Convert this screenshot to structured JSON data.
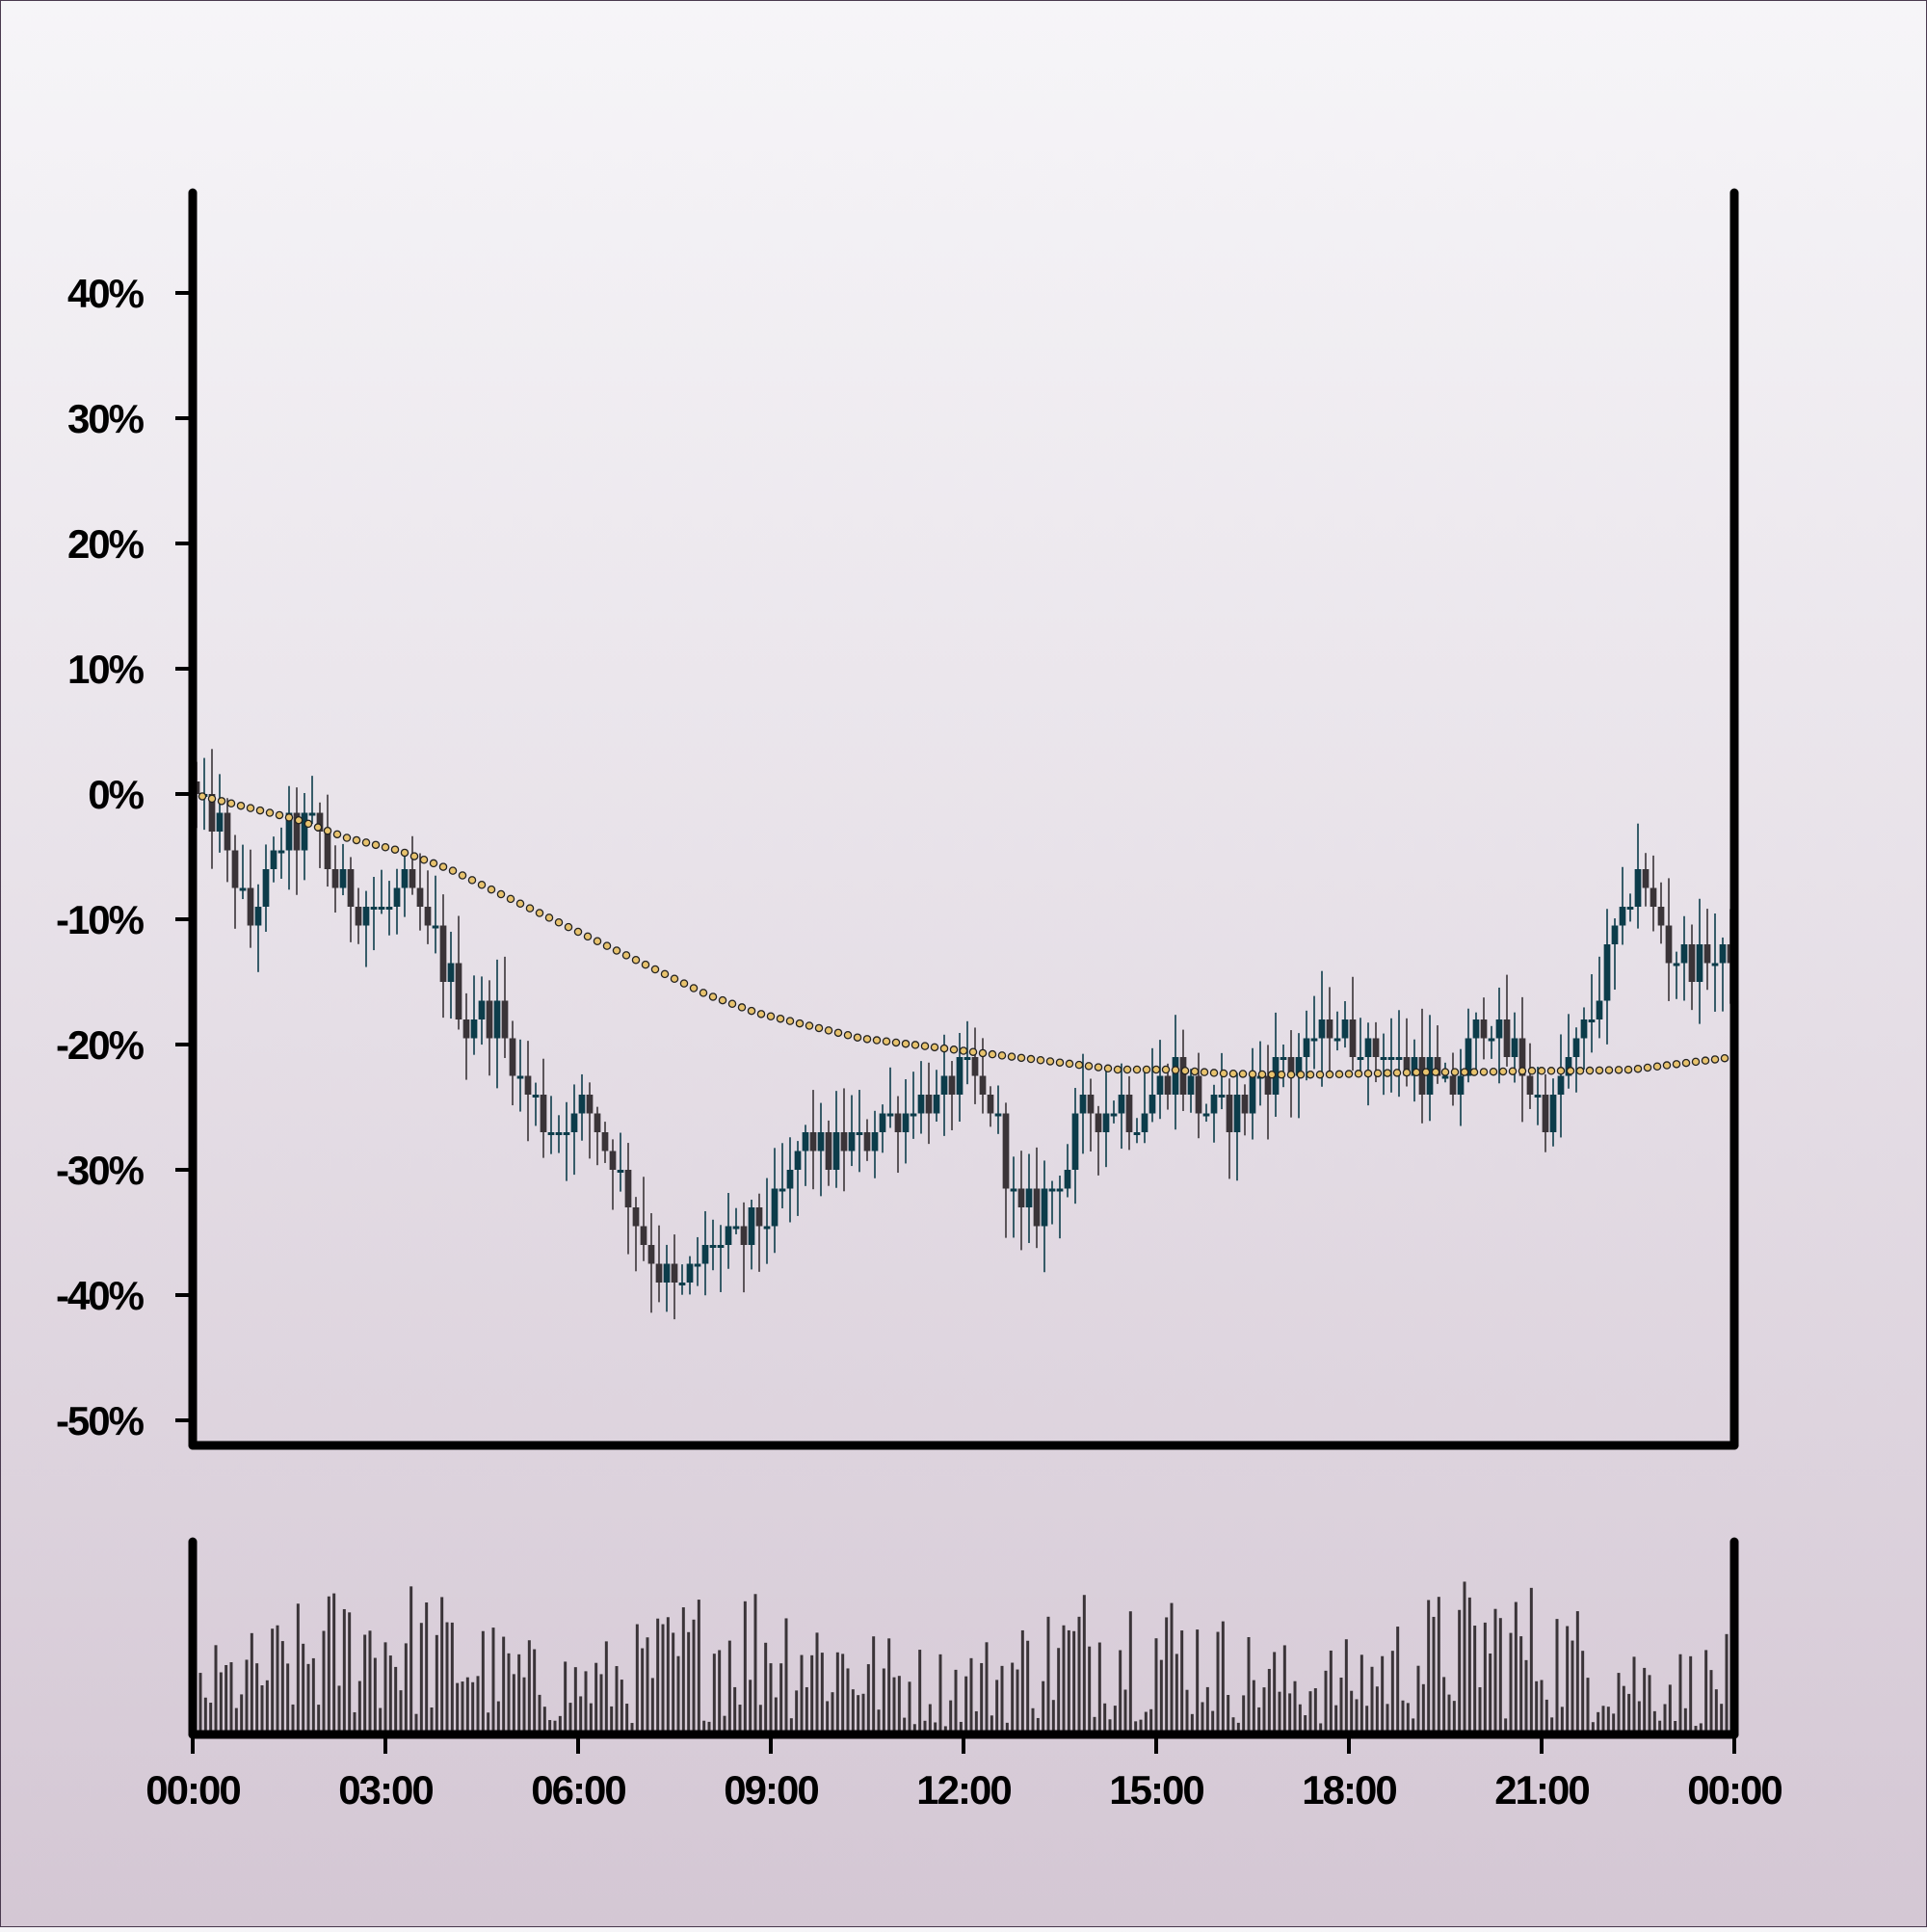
{
  "chart_data": {
    "type": "candlestick",
    "y_axis": {
      "tick_labels": [
        "40%",
        "30%",
        "20%",
        "10%",
        "0%",
        "-10%",
        "-20%",
        "-30%",
        "-40%",
        "-50%"
      ],
      "tick_values": [
        40,
        30,
        20,
        10,
        0,
        -10,
        -20,
        -30,
        -40,
        -50
      ],
      "range": [
        -52,
        48
      ]
    },
    "x_axis": {
      "tick_labels": [
        "00:00",
        "03:00",
        "06:00",
        "09:00",
        "12:00",
        "15:00",
        "18:00",
        "21:00",
        "00:00"
      ],
      "range_hours": [
        0,
        24
      ]
    },
    "series": [
      {
        "kind": "candles",
        "hourly_close_pct": [
          1,
          -3,
          -10,
          -4,
          -2,
          -8,
          -9,
          -8,
          -12,
          -18,
          -18,
          -24,
          -27,
          -25,
          -30,
          -37,
          -40,
          -36,
          -36,
          -33,
          -28,
          -29,
          -27,
          -25,
          -25,
          -22,
          -25,
          -34,
          -32,
          -26,
          -25,
          -25,
          -22,
          -26,
          -25,
          -22,
          -21,
          -19,
          -20,
          -21,
          -22,
          -24,
          -18,
          -21,
          -26,
          -20,
          -14,
          -6,
          -12,
          -13,
          -13
        ],
        "up_color": "#0c3c4a",
        "down_color": "#3a3438"
      },
      {
        "kind": "trend-line",
        "points_pct": [
          0,
          -1,
          -2,
          -3.5,
          -4.5,
          -6,
          -8,
          -10,
          -12,
          -14,
          -16,
          -17.5,
          -18.5,
          -19.5,
          -20,
          -20.5,
          -21,
          -21.5,
          -22,
          -22,
          -22.3,
          -22.4,
          -22.4,
          -22.3,
          -22.2,
          -22.2,
          -22.1,
          -22.1,
          -22,
          -21.5,
          -21
        ],
        "marker_color": "#e8c36e",
        "marker_edge": "#222222"
      }
    ],
    "volume": {
      "bar_color": "#3a3438",
      "bar_count": 300
    },
    "grid": false,
    "legend": "none"
  }
}
